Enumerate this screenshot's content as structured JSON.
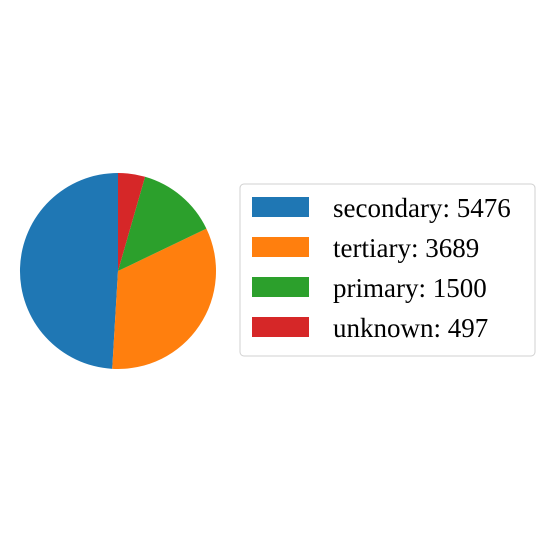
{
  "chart_data": {
    "type": "pie",
    "categories": [
      "secondary",
      "tertiary",
      "primary",
      "unknown"
    ],
    "values": [
      5476,
      3689,
      1500,
      497
    ],
    "legend_labels": [
      "secondary: 5476",
      "tertiary: 3689",
      "primary: 1500",
      "unknown: 497"
    ],
    "colors": [
      "#1f77b4",
      "#ff7f0e",
      "#2ca02c",
      "#d62728"
    ],
    "start_angle_deg": 90,
    "direction": "counterclockwise",
    "legend": "right",
    "title": "",
    "grid": false
  }
}
